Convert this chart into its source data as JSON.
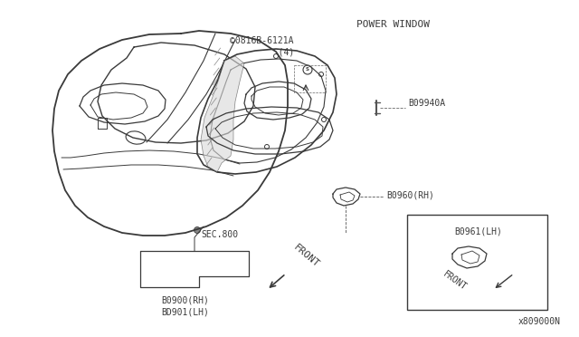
{
  "bg_color": "#ffffff",
  "part_number_bottom": "x809000N",
  "power_window_label": "POWER WINDOW",
  "labels": {
    "0816B_6121A": "©0816B-6121A\n   (4)",
    "B09940": "B09940A",
    "B0960_RH": "B0960(RH)",
    "B0961_LH": "B0961(LH)",
    "SEC_800": "SEC.800",
    "B0900_RH": "B0900(RH)\nBD901(LH)",
    "FRONT1": "FRONT",
    "FRONT2": "FRONT"
  },
  "line_color": "#3a3a3a",
  "text_color": "#3a3a3a",
  "font_size": 7,
  "dpi": 100,
  "figw": 6.4,
  "figh": 3.72
}
